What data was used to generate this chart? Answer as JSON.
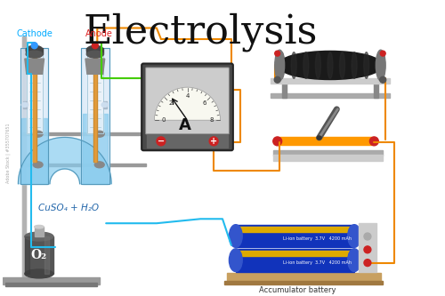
{
  "title": "Electrolysis",
  "title_fontsize": 32,
  "title_color": "#111111",
  "bg": "#ffffff",
  "cathode_label": "Cathode",
  "anode_label": "Anode",
  "cathode_color": "#00aaff",
  "anode_color": "#dd2222",
  "solution_label": "CuSO₄ + H₂O",
  "o2_label": "O₂",
  "ammeter_label": "A",
  "battery_label": "Accumulator battery",
  "cyan": "#22bbee",
  "orange": "#ee8800",
  "green": "#44cc00",
  "watermark": "Adobe Stock | #355707651"
}
